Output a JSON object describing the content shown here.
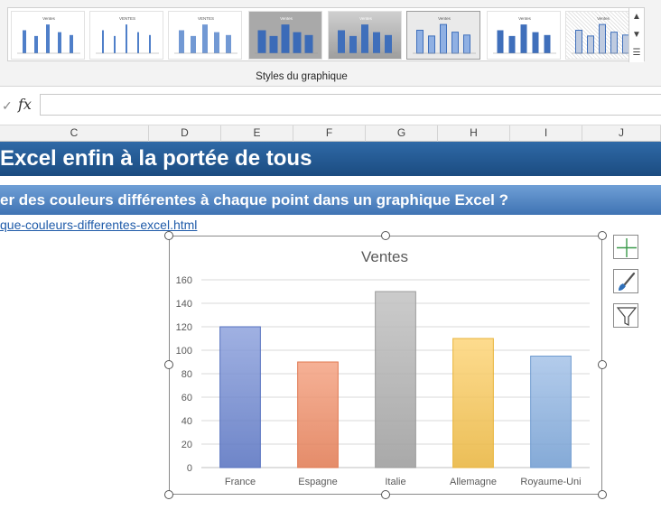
{
  "ribbon": {
    "group_label": "Styles du graphique",
    "thumbnails": [
      {
        "title": "Ventes"
      },
      {
        "title": "VENTES"
      },
      {
        "title": "VENTES"
      },
      {
        "title": "Ventes"
      },
      {
        "title": "Ventes"
      },
      {
        "title": "Ventes"
      },
      {
        "title": "Ventes"
      },
      {
        "title": "Ventes"
      }
    ]
  },
  "formula_bar": {
    "cancel_glyph": "✓",
    "fx_label": "fx",
    "value": ""
  },
  "columns": [
    "C",
    "D",
    "E",
    "F",
    "G",
    "H",
    "I",
    "J"
  ],
  "sheet": {
    "banner_title": "Excel enfin à la portée de tous",
    "banner_subtitle": "er des couleurs différentes à chaque point dans un graphique Excel ?",
    "link_text": "que-couleurs-differentes-excel.html"
  },
  "chart_data": {
    "type": "bar",
    "title": "Ventes",
    "categories": [
      "France",
      "Espagne",
      "Italie",
      "Allemagne",
      "Royaume-Uni"
    ],
    "values": [
      120,
      90,
      150,
      110,
      95
    ],
    "ylim": [
      0,
      160
    ],
    "yticks": [
      0,
      20,
      40,
      60,
      80,
      100,
      120,
      140,
      160
    ],
    "grid": true,
    "colors": [
      "#8fa3dd",
      "#f4a383",
      "#c2c2c2",
      "#fdd57a",
      "#a6c3e8"
    ],
    "border_colors": [
      "#5570bf",
      "#e07850",
      "#9a9a9a",
      "#e8b33a",
      "#6f9bd0"
    ]
  },
  "chart_tools": [
    {
      "name": "chart-elements",
      "icon": "plus-icon"
    },
    {
      "name": "chart-styles",
      "icon": "brush-icon"
    },
    {
      "name": "chart-filters",
      "icon": "filter-icon"
    }
  ]
}
